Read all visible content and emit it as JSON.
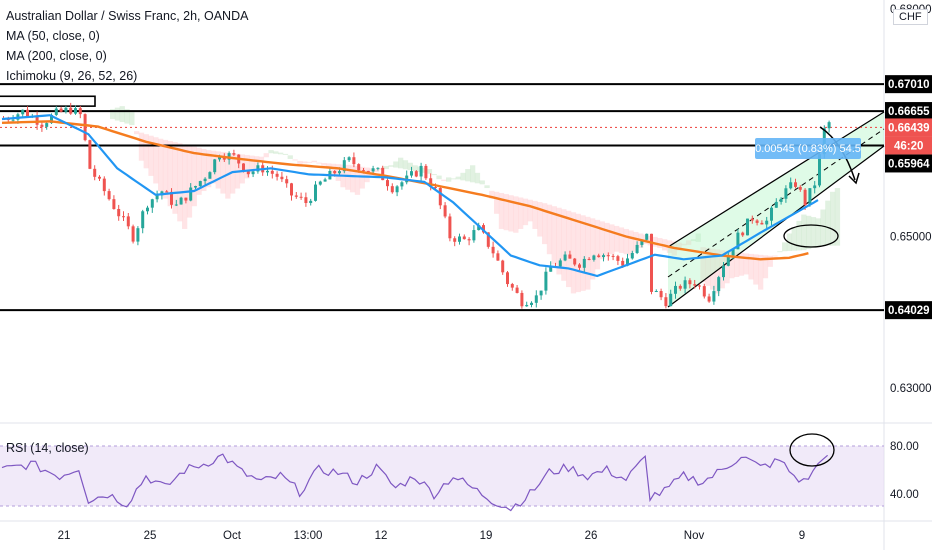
{
  "legend": {
    "symbol": "Australian Dollar / Swiss Franc, 2h, OANDA",
    "ma50": "MA (50, close, 0)",
    "ma200": "MA (200, close, 0)",
    "ichimoku": "Ichimoku (9, 26, 52, 26)",
    "rsi": "RSI (14, close)"
  },
  "currency": "CHF",
  "colors": {
    "up": "#26a69a",
    "down": "#ef5350",
    "ma50": "#2196f3",
    "ma200": "#f57c1f",
    "cloud_green": "#c8e6c9",
    "cloud_red": "#ffcdd2",
    "rsi_line": "#7e57c2",
    "rsi_band": "#e8dcf5",
    "channel_fill": "#b9f6ca",
    "level_line": "#000000",
    "current_line": "#ef5350",
    "measure_box": "#64b5f6"
  },
  "chart_data": {
    "type": "candlestick",
    "title": "Australian Dollar / Swiss Franc, 2h, OANDA",
    "y_unit": "CHF",
    "ylim": [
      0.6258,
      0.6812
    ],
    "y_ticks": [
      "0.68000",
      "0.65000",
      "0.63000"
    ],
    "x_ticks": [
      "21",
      "25",
      "Oct",
      "13:00",
      "12",
      "19",
      "26",
      "Nov",
      "9"
    ],
    "price_series_anchors": [
      [
        0,
        0.6655
      ],
      [
        4,
        0.6665
      ],
      [
        8,
        0.665
      ],
      [
        11,
        0.6662
      ],
      [
        14,
        0.6668
      ],
      [
        16,
        0.666
      ],
      [
        18,
        0.659
      ],
      [
        21,
        0.656
      ],
      [
        24,
        0.653
      ],
      [
        27,
        0.65
      ],
      [
        30,
        0.6545
      ],
      [
        33,
        0.656
      ],
      [
        36,
        0.654
      ],
      [
        39,
        0.656
      ],
      [
        42,
        0.658
      ],
      [
        45,
        0.661
      ],
      [
        48,
        0.6605
      ],
      [
        51,
        0.6585
      ],
      [
        54,
        0.659
      ],
      [
        57,
        0.658
      ],
      [
        60,
        0.6555
      ],
      [
        63,
        0.6545
      ],
      [
        66,
        0.657
      ],
      [
        69,
        0.6585
      ],
      [
        72,
        0.66
      ],
      [
        75,
        0.659
      ],
      [
        78,
        0.6585
      ],
      [
        81,
        0.6565
      ],
      [
        84,
        0.6575
      ],
      [
        87,
        0.659
      ],
      [
        90,
        0.656
      ],
      [
        93,
        0.65
      ],
      [
        96,
        0.6495
      ],
      [
        99,
        0.651
      ],
      [
        102,
        0.648
      ],
      [
        105,
        0.644
      ],
      [
        108,
        0.6415
      ],
      [
        111,
        0.642
      ],
      [
        114,
        0.646
      ],
      [
        117,
        0.647
      ],
      [
        120,
        0.6465
      ],
      [
        123,
        0.648
      ],
      [
        126,
        0.6475
      ],
      [
        129,
        0.6465
      ],
      [
        132,
        0.6485
      ],
      [
        134,
        0.65
      ],
      [
        135,
        0.643
      ],
      [
        138,
        0.6415
      ],
      [
        141,
        0.6435
      ],
      [
        144,
        0.644
      ],
      [
        147,
        0.642
      ],
      [
        150,
        0.6465
      ],
      [
        153,
        0.65
      ],
      [
        156,
        0.6525
      ],
      [
        159,
        0.652
      ],
      [
        162,
        0.6555
      ],
      [
        165,
        0.657
      ],
      [
        167,
        0.6545
      ],
      [
        169,
        0.657
      ],
      [
        171,
        0.664
      ],
      [
        172,
        0.665
      ]
    ],
    "ma50_anchors": [
      [
        0,
        0.6655
      ],
      [
        10,
        0.666
      ],
      [
        18,
        0.6635
      ],
      [
        24,
        0.659
      ],
      [
        32,
        0.6555
      ],
      [
        40,
        0.656
      ],
      [
        48,
        0.6585
      ],
      [
        56,
        0.659
      ],
      [
        64,
        0.6582
      ],
      [
        72,
        0.658
      ],
      [
        80,
        0.6578
      ],
      [
        88,
        0.6572
      ],
      [
        94,
        0.6545
      ],
      [
        100,
        0.651
      ],
      [
        106,
        0.6475
      ],
      [
        112,
        0.6462
      ],
      [
        118,
        0.6458
      ],
      [
        124,
        0.6448
      ],
      [
        130,
        0.6462
      ],
      [
        136,
        0.6476
      ],
      [
        142,
        0.647
      ],
      [
        150,
        0.6475
      ],
      [
        158,
        0.6505
      ],
      [
        165,
        0.653
      ],
      [
        170,
        0.6548
      ]
    ],
    "ma200_anchors": [
      [
        0,
        0.665
      ],
      [
        10,
        0.6652
      ],
      [
        20,
        0.6645
      ],
      [
        30,
        0.6625
      ],
      [
        40,
        0.661
      ],
      [
        50,
        0.6602
      ],
      [
        60,
        0.6595
      ],
      [
        70,
        0.659
      ],
      [
        80,
        0.658
      ],
      [
        90,
        0.6568
      ],
      [
        100,
        0.6555
      ],
      [
        110,
        0.654
      ],
      [
        120,
        0.652
      ],
      [
        130,
        0.65
      ],
      [
        140,
        0.6485
      ],
      [
        150,
        0.6475
      ],
      [
        158,
        0.647
      ],
      [
        164,
        0.6472
      ],
      [
        168,
        0.6478
      ]
    ],
    "levels": [
      {
        "label": "0.67010",
        "value": 0.6701,
        "style": "solid"
      },
      {
        "label": "0.66655",
        "value": 0.66655,
        "style": "solid"
      },
      {
        "label": "0.66439",
        "value": 0.66439,
        "style": "dotted-current"
      },
      {
        "label": "0.65964",
        "value": 0.65964,
        "style": "tag-only"
      },
      {
        "label": "0.64029",
        "value": 0.64029,
        "style": "solid"
      }
    ],
    "resistance_mid": 0.662,
    "countdown": "46:20",
    "measure": {
      "text": "0.00545 (0.83%) 54.5"
    },
    "rsi": {
      "label": "RSI (14, close)",
      "ylim": [
        20,
        95
      ],
      "ticks": [
        "80.00",
        "40.00"
      ],
      "band": [
        30,
        70
      ],
      "anchors": [
        [
          0,
          60
        ],
        [
          6,
          65
        ],
        [
          12,
          55
        ],
        [
          16,
          62
        ],
        [
          18,
          35
        ],
        [
          22,
          40
        ],
        [
          26,
          32
        ],
        [
          30,
          55
        ],
        [
          34,
          45
        ],
        [
          38,
          60
        ],
        [
          42,
          65
        ],
        [
          46,
          72
        ],
        [
          50,
          58
        ],
        [
          54,
          50
        ],
        [
          58,
          55
        ],
        [
          62,
          42
        ],
        [
          66,
          60
        ],
        [
          70,
          58
        ],
        [
          74,
          50
        ],
        [
          78,
          62
        ],
        [
          82,
          45
        ],
        [
          86,
          55
        ],
        [
          90,
          40
        ],
        [
          94,
          55
        ],
        [
          98,
          45
        ],
        [
          102,
          35
        ],
        [
          106,
          28
        ],
        [
          110,
          40
        ],
        [
          114,
          58
        ],
        [
          118,
          62
        ],
        [
          122,
          55
        ],
        [
          126,
          60
        ],
        [
          130,
          52
        ],
        [
          134,
          70
        ],
        [
          135,
          38
        ],
        [
          138,
          42
        ],
        [
          142,
          55
        ],
        [
          146,
          50
        ],
        [
          150,
          60
        ],
        [
          154,
          72
        ],
        [
          158,
          62
        ],
        [
          162,
          68
        ],
        [
          165,
          55
        ],
        [
          167,
          50
        ],
        [
          169,
          58
        ],
        [
          171,
          72
        ],
        [
          172,
          70
        ]
      ]
    }
  }
}
